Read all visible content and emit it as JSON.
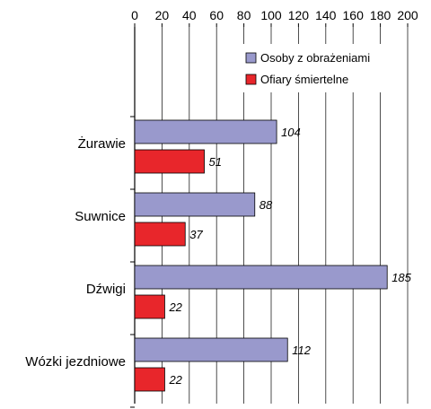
{
  "chart_data": {
    "type": "bar",
    "orientation": "horizontal",
    "categories": [
      "Żurawie",
      "Suwnice",
      "Dźwigi",
      "Wózki jezdniowe"
    ],
    "series": [
      {
        "name": "Osoby z obrażeniami",
        "values": [
          104,
          88,
          185,
          112
        ],
        "color": "#9999cc"
      },
      {
        "name": "Ofiary śmiertelne",
        "values": [
          51,
          37,
          22,
          22
        ],
        "color": "#e8262b"
      }
    ],
    "xlim": [
      0,
      200
    ],
    "xticks": [
      0,
      20,
      40,
      60,
      80,
      100,
      120,
      140,
      160,
      180,
      200
    ],
    "xaxis_position": "top",
    "grid": "vertical",
    "legend_position": "top-right",
    "data_labels": true
  }
}
